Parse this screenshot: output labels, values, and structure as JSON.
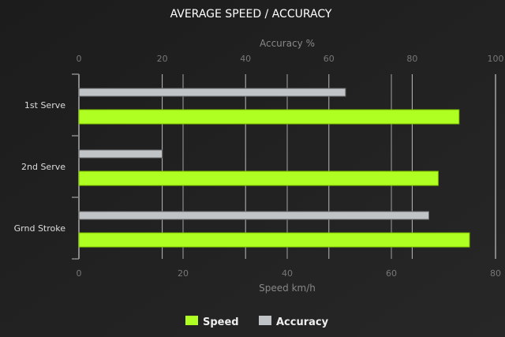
{
  "chart_data": {
    "type": "bar",
    "orientation": "horizontal",
    "title": "AVERAGE SPEED / ACCURACY",
    "categories": [
      "1st Serve",
      "2nd Serve",
      "Grnd Stroke"
    ],
    "series": [
      {
        "name": "Speed",
        "values": [
          73,
          69,
          75
        ],
        "color": "#b0ff22",
        "axis": "bottom"
      },
      {
        "name": "Accuracy",
        "values": [
          64,
          20,
          84
        ],
        "color": "#c0c4c6",
        "axis": "top"
      }
    ],
    "bottom_axis": {
      "label": "Speed km/h",
      "range": [
        0,
        80
      ],
      "ticks": [
        "0",
        "20",
        "40",
        "60",
        "80"
      ]
    },
    "top_axis": {
      "label": "Accuracy %",
      "range": [
        0,
        100
      ],
      "ticks": [
        "0",
        "20",
        "40",
        "60",
        "80",
        "100"
      ]
    },
    "grid": true,
    "legend_position": "bottom"
  }
}
